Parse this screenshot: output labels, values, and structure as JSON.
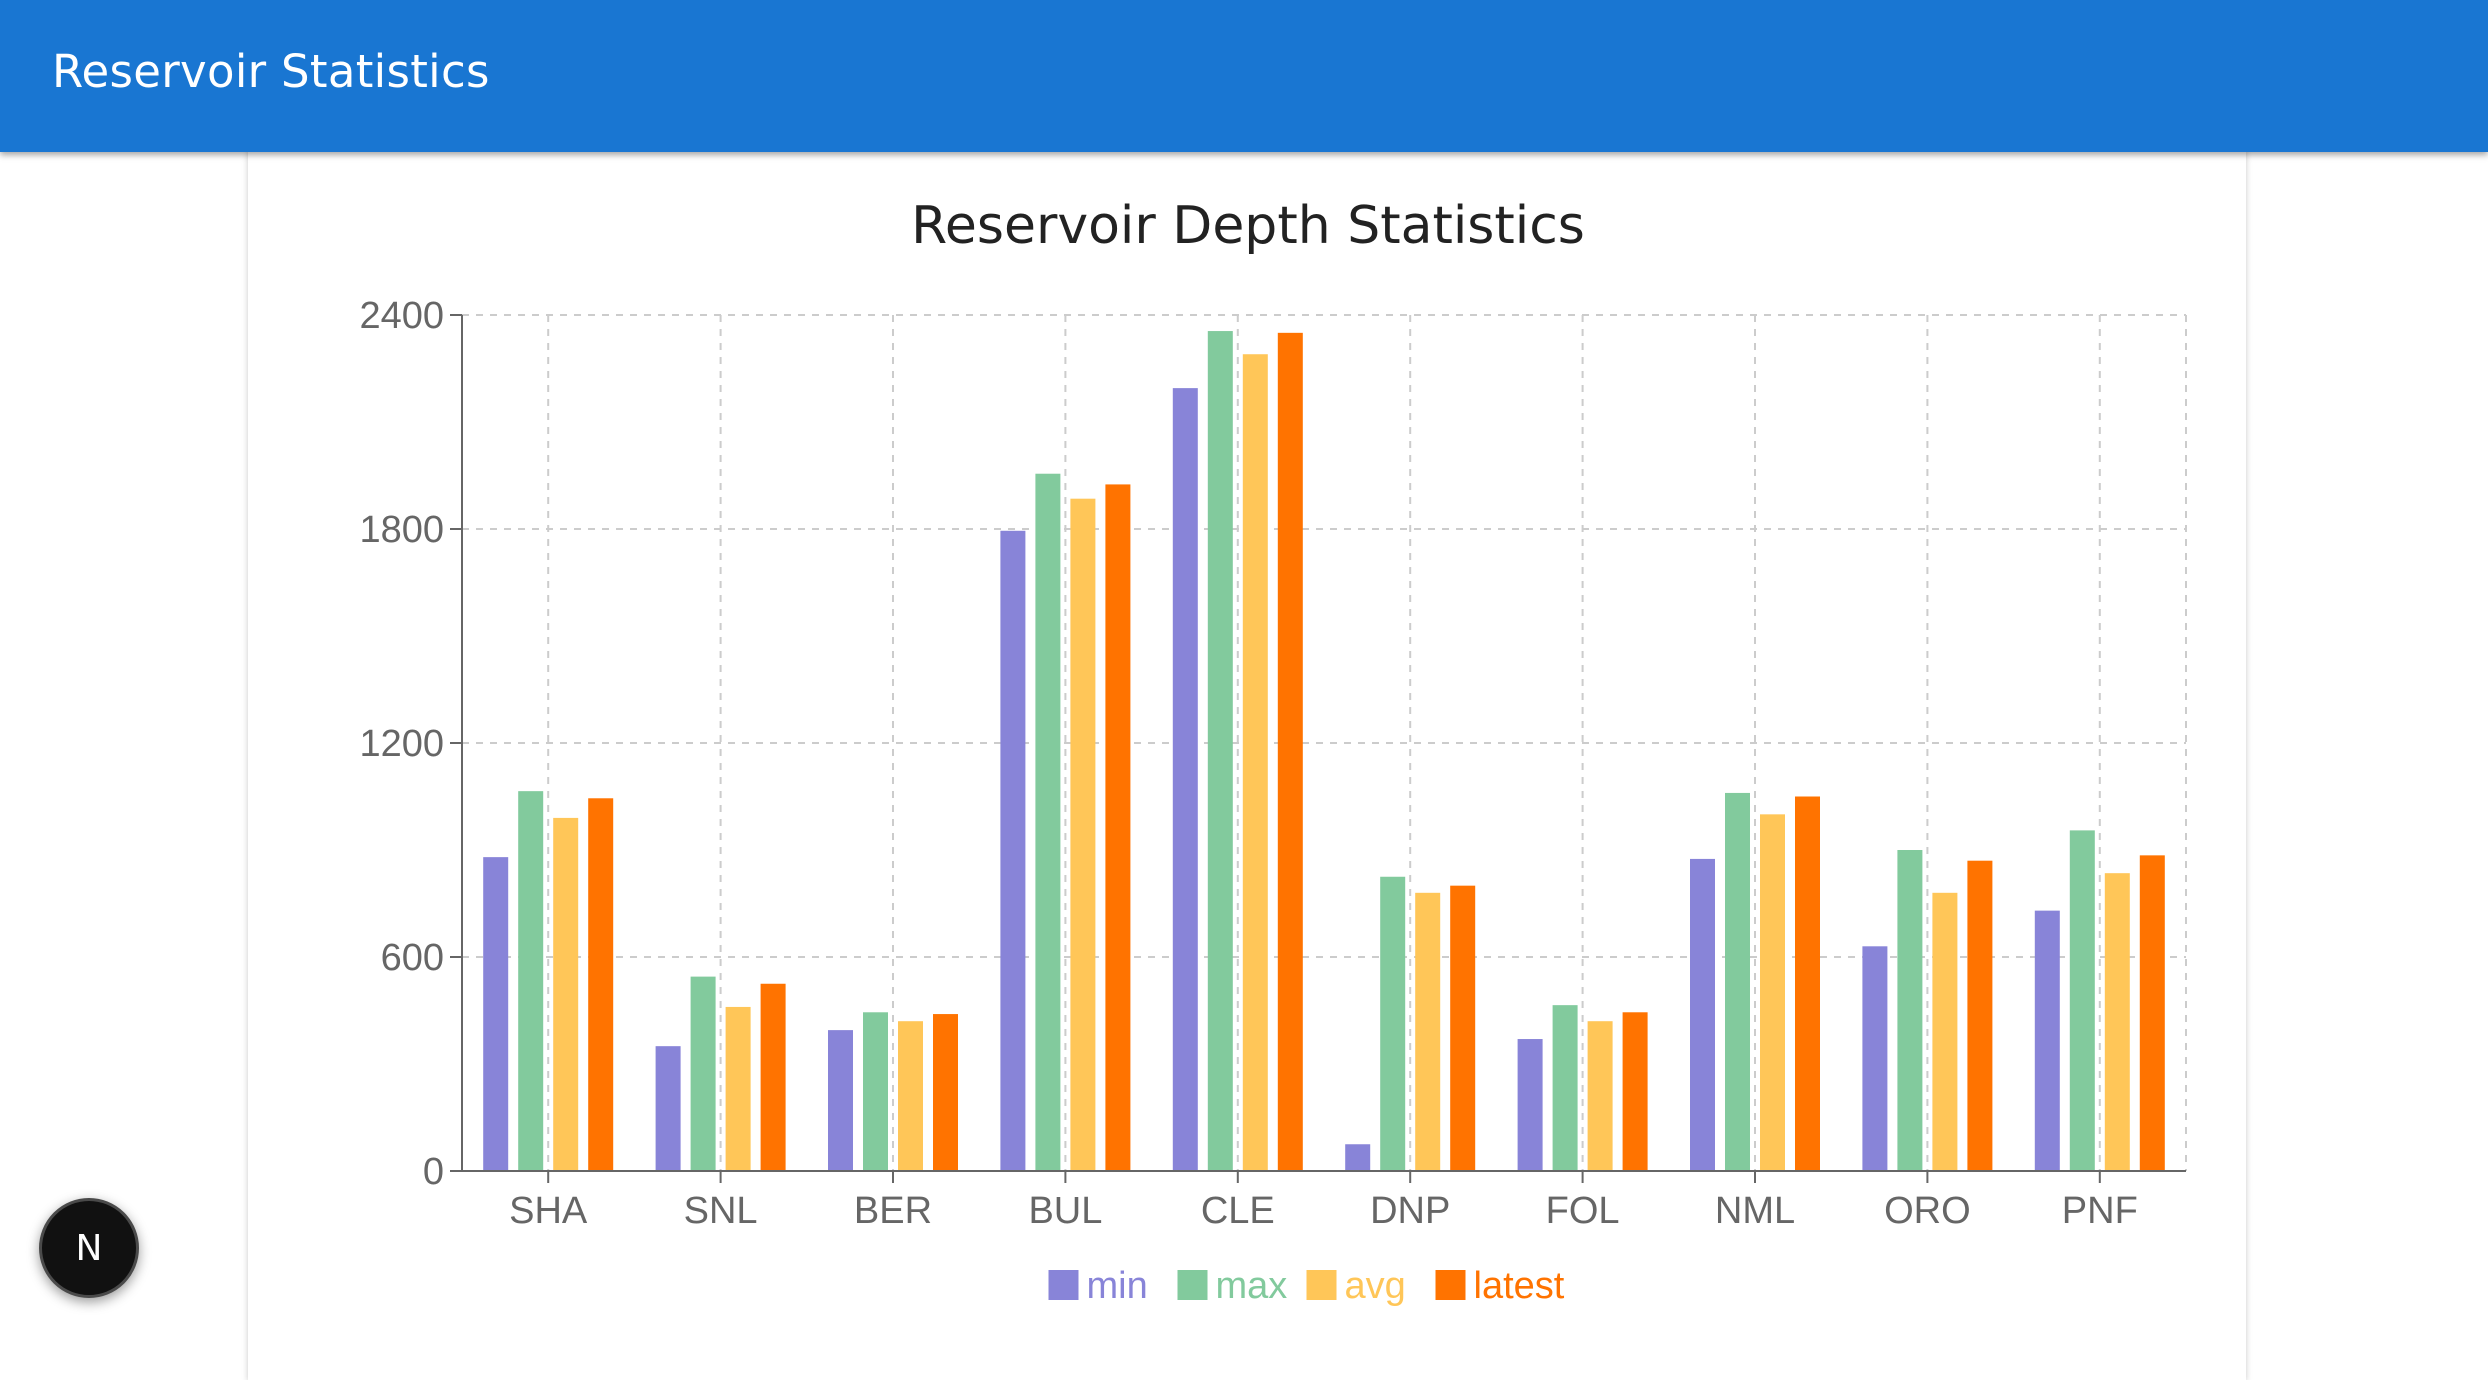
{
  "app_bar": {
    "title": "Reservoir Statistics",
    "color": "#1976d2"
  },
  "badge": {
    "icon": "next-logo-icon",
    "letter": "N"
  },
  "chart_data": {
    "type": "bar",
    "title": "Reservoir Depth Statistics",
    "xlabel": "",
    "ylabel": "",
    "categories": [
      "SHA",
      "SNL",
      "BER",
      "BUL",
      "CLE",
      "DNP",
      "FOL",
      "NML",
      "ORO",
      "PNF"
    ],
    "ylim": [
      0,
      2400
    ],
    "yticks": [
      "0",
      "600",
      "1200",
      "1800",
      "2400"
    ],
    "grid": true,
    "legend_position": "bottom",
    "series": [
      {
        "name": "min",
        "color": "#8884d8",
        "values": [
          880,
          350,
          395,
          1795,
          2195,
          75,
          370,
          875,
          630,
          730
        ]
      },
      {
        "name": "max",
        "color": "#82ca9d",
        "values": [
          1065,
          545,
          445,
          1955,
          2355,
          825,
          465,
          1060,
          900,
          955
        ]
      },
      {
        "name": "avg",
        "color": "#ffc658",
        "values": [
          990,
          460,
          420,
          1885,
          2290,
          780,
          420,
          1000,
          780,
          835
        ]
      },
      {
        "name": "latest",
        "color": "#ff7300",
        "values": [
          1045,
          525,
          440,
          1925,
          2350,
          800,
          445,
          1050,
          870,
          885
        ]
      }
    ]
  }
}
